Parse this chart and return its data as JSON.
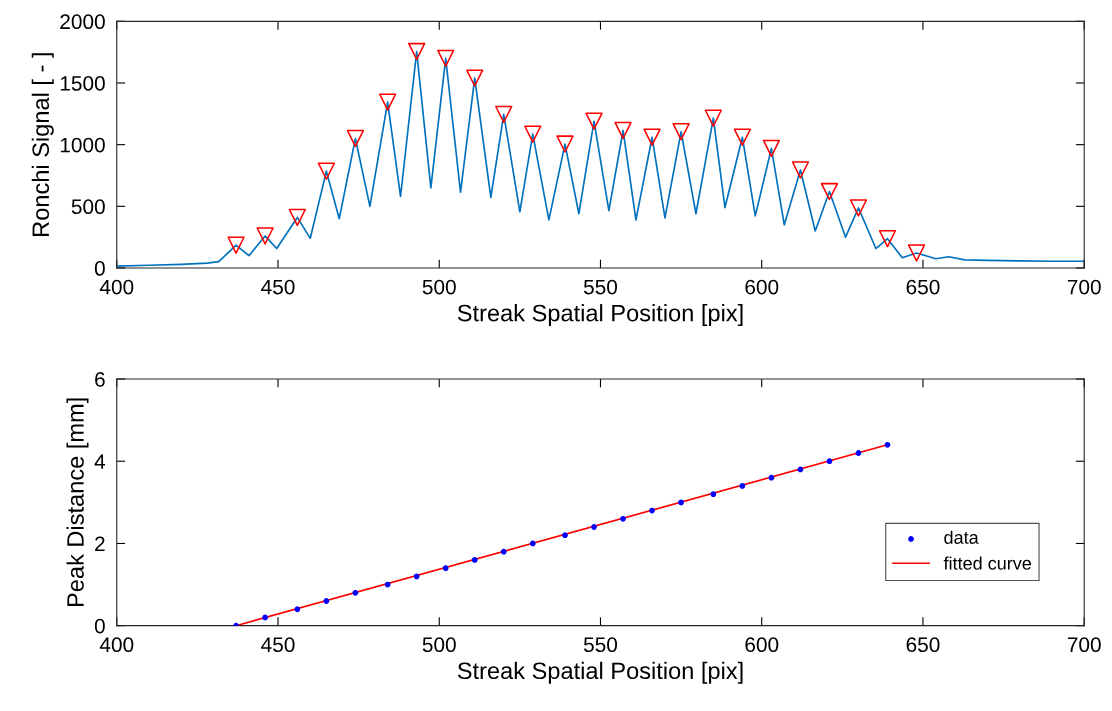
{
  "chart_data": [
    {
      "type": "line",
      "xlabel": "Streak Spatial Position [pix]",
      "ylabel": "Ronchi Signal [ - ]",
      "xlim": [
        400,
        700
      ],
      "ylim": [
        0,
        2000
      ],
      "xticks": [
        400,
        450,
        500,
        550,
        600,
        650,
        700
      ],
      "yticks": [
        0,
        500,
        1000,
        1500,
        2000
      ],
      "grid": false,
      "legend": false,
      "series": [
        {
          "color": "#0072bd",
          "marker": "none",
          "x": [
            400,
            410,
            420,
            428,
            431.6,
            434,
            437,
            441,
            446,
            449.6,
            456,
            460,
            465,
            469,
            474,
            478.5,
            484,
            488,
            493,
            497.4,
            502,
            506.6,
            511,
            516,
            520,
            525,
            529,
            534,
            539,
            543.3,
            548,
            552.6,
            557,
            561,
            566,
            570,
            575,
            579.6,
            585,
            588.6,
            594,
            598,
            603,
            607,
            612,
            616.6,
            621,
            626,
            630,
            635.4,
            639,
            643.6,
            648,
            654,
            658,
            663,
            670,
            680,
            690,
            700
          ],
          "values": [
            15,
            22,
            30,
            40,
            52,
            110,
            185,
            100,
            260,
            158,
            410,
            240,
            785,
            400,
            1050,
            500,
            1345,
            580,
            1755,
            650,
            1700,
            614,
            1540,
            573,
            1245,
            456,
            1085,
            390,
            1005,
            440,
            1190,
            465,
            1115,
            390,
            1060,
            407,
            1105,
            440,
            1215,
            490,
            1060,
            423,
            970,
            350,
            795,
            300,
            620,
            250,
            487,
            158,
            238,
            83,
            122,
            75,
            91,
            66,
            62,
            58,
            55,
            55
          ]
        },
        {
          "type": "scatter",
          "color": "#ff0000",
          "marker": "triangle",
          "x": [
            437,
            446,
            456,
            465,
            474,
            484,
            493,
            502,
            511,
            520,
            529,
            539,
            548,
            557,
            566,
            575,
            585,
            594,
            603,
            612,
            621,
            630,
            639,
            648
          ],
          "values": [
            185,
            260,
            410,
            785,
            1050,
            1345,
            1755,
            1700,
            1540,
            1245,
            1085,
            1005,
            1190,
            1115,
            1060,
            1105,
            1215,
            1060,
            970,
            795,
            620,
            487,
            238,
            122
          ]
        }
      ]
    },
    {
      "type": "line",
      "xlabel": "Streak Spatial Position [pix]",
      "ylabel": "Peak Distance [mm]",
      "xlim": [
        400,
        700
      ],
      "ylim": [
        0,
        6
      ],
      "xticks": [
        400,
        450,
        500,
        550,
        600,
        650,
        700
      ],
      "yticks": [
        0,
        2,
        4,
        6
      ],
      "grid": false,
      "legend": "lower right",
      "series": [
        {
          "type": "scatter",
          "name": "data",
          "color": "#0000ff",
          "marker": "circle",
          "x": [
            437,
            446,
            456,
            465,
            474,
            484,
            493,
            502,
            511,
            520,
            529,
            539,
            548,
            557,
            566,
            575,
            585,
            594,
            603,
            612,
            621,
            630,
            639
          ],
          "values": [
            0,
            0.2,
            0.4,
            0.6,
            0.8,
            1.0,
            1.2,
            1.4,
            1.6,
            1.8,
            2.0,
            2.2,
            2.4,
            2.6,
            2.8,
            3.0,
            3.2,
            3.4,
            3.6,
            3.8,
            4.0,
            4.2,
            4.4
          ]
        },
        {
          "name": "fitted curve",
          "color": "#ff0000",
          "marker": "none",
          "x": [
            437,
            639
          ],
          "values": [
            0,
            4.4
          ]
        }
      ]
    }
  ]
}
